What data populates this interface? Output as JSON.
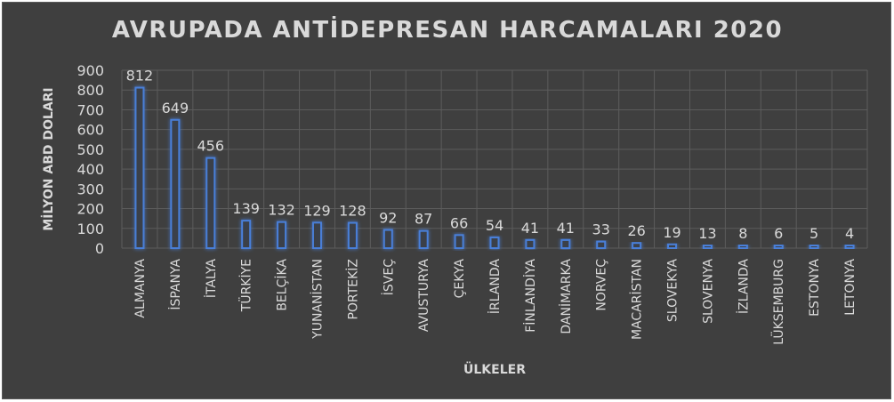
{
  "chart_data": {
    "type": "bar",
    "title": "AVRUPADA ANTİDEPRESAN HARCAMALARI 2020",
    "xlabel": "ÜLKELER",
    "ylabel": "MİLYON ABD DOLARI",
    "ylim": [
      0,
      900
    ],
    "yticks": [
      "900",
      "800",
      "700",
      "600",
      "500",
      "400",
      "300",
      "200",
      "100",
      "0"
    ],
    "grid": true,
    "legend": "none",
    "categories": [
      "ALMANYA",
      "İSPANYA",
      "İTALYA",
      "TÜRKİYE",
      "BELÇİKA",
      "YUNANİSTAN",
      "PORTEKİZ",
      "İSVEÇ",
      "AVUSTURYA",
      "ÇEKYA",
      "İRLANDA",
      "FİNLANDİYA",
      "DANİMARKA",
      "NORVEÇ",
      "MACARİSTAN",
      "SLOVEKYA",
      "SLOVENYA",
      "İZLANDA",
      "LÜKSEMBURG",
      "ESTONYA",
      "LETONYA"
    ],
    "values": [
      812,
      649,
      456,
      139,
      132,
      129,
      128,
      92,
      87,
      66,
      54,
      41,
      41,
      33,
      26,
      19,
      13,
      8,
      6,
      5,
      4
    ],
    "colors": {
      "background": "#3f3f3f",
      "bar_fill": "#3a3f4a",
      "bar_stroke": "#4a7fd8",
      "bar_glow": "#2f6bd6",
      "text": "#d9d9d9",
      "grid": "#5c5c5c"
    }
  }
}
